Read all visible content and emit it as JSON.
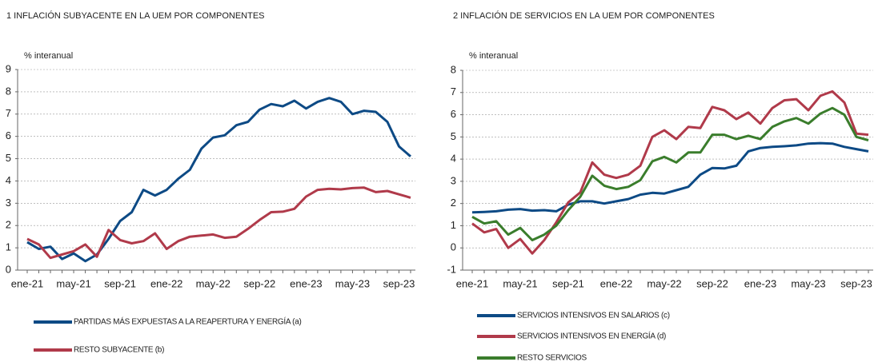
{
  "chart_data": [
    {
      "type": "line",
      "title": "1 INFLACIÓN SUBYACENTE EN LA UEM POR COMPONENTES",
      "y_label": "% interanual",
      "categories": [
        "ene-21",
        null,
        null,
        null,
        "may-21",
        null,
        null,
        null,
        "sep-21",
        null,
        null,
        null,
        "ene-22",
        null,
        null,
        null,
        "may-22",
        null,
        null,
        null,
        "sep-22",
        null,
        null,
        null,
        "ene-23",
        null,
        null,
        null,
        "may-23",
        null,
        null,
        null,
        "sep-23",
        null
      ],
      "series": [
        {
          "name": "PARTIDAS MÁS EXPUESTAS A LA REAPERTURA Y ENERGÍA (a)",
          "color": "#0d4a85",
          "values": [
            1.25,
            0.95,
            1.05,
            0.5,
            0.75,
            0.4,
            0.7,
            1.4,
            2.2,
            2.6,
            3.6,
            3.35,
            3.6,
            4.1,
            4.5,
            5.45,
            5.95,
            6.05,
            6.5,
            6.65,
            7.2,
            7.45,
            7.35,
            7.6,
            7.25,
            7.55,
            7.72,
            7.55,
            7.0,
            7.15,
            7.1,
            6.65,
            5.55,
            5.1
          ]
        },
        {
          "name": "RESTO SUBYACENTE (b)",
          "color": "#b03a4a",
          "values": [
            1.4,
            1.15,
            0.55,
            0.7,
            0.85,
            1.15,
            0.6,
            1.8,
            1.35,
            1.2,
            1.3,
            1.65,
            0.95,
            1.3,
            1.5,
            1.55,
            1.6,
            1.45,
            1.5,
            1.85,
            2.25,
            2.6,
            2.62,
            2.75,
            3.3,
            3.6,
            3.65,
            3.62,
            3.68,
            3.7,
            3.5,
            3.55,
            3.4,
            3.25
          ]
        }
      ],
      "ylim": [
        0,
        9
      ],
      "yticks": [
        0,
        1,
        2,
        3,
        4,
        5,
        6,
        7,
        8,
        9
      ],
      "grid": true
    },
    {
      "type": "line",
      "title": "2 INFLACIÓN DE SERVICIOS EN LA UEM POR COMPONENTES",
      "y_label": "% interanual",
      "categories": [
        "ene-21",
        null,
        null,
        null,
        "may-21",
        null,
        null,
        null,
        "sep-21",
        null,
        null,
        null,
        "ene-22",
        null,
        null,
        null,
        "may-22",
        null,
        null,
        null,
        "sep-22",
        null,
        null,
        null,
        "ene-23",
        null,
        null,
        null,
        "may-23",
        null,
        null,
        null,
        "sep-23",
        null
      ],
      "series": [
        {
          "name": "SERVICIOS INTENSIVOS EN SALARIOS (c)",
          "color": "#0d4a85",
          "values": [
            1.6,
            1.62,
            1.65,
            1.72,
            1.75,
            1.68,
            1.7,
            1.65,
            1.95,
            2.1,
            2.1,
            2.0,
            2.1,
            2.2,
            2.4,
            2.48,
            2.45,
            2.6,
            2.75,
            3.3,
            3.6,
            3.58,
            3.7,
            4.35,
            4.5,
            4.55,
            4.58,
            4.62,
            4.7,
            4.72,
            4.7,
            4.55,
            4.45,
            4.35
          ]
        },
        {
          "name": "SERVICIOS INTENSIVOS EN ENERGÍA (d)",
          "color": "#b03a4a",
          "values": [
            1.1,
            0.7,
            0.85,
            0.0,
            0.4,
            -0.25,
            0.35,
            1.15,
            2.05,
            2.5,
            3.85,
            3.3,
            3.15,
            3.3,
            3.7,
            5.0,
            5.3,
            4.9,
            5.45,
            5.4,
            6.35,
            6.2,
            5.8,
            6.1,
            5.6,
            6.3,
            6.65,
            6.7,
            6.2,
            6.85,
            7.05,
            6.55,
            5.15,
            5.1
          ]
        },
        {
          "name": "RESTO SERVICIOS",
          "color": "#3a7d2c",
          "values": [
            1.4,
            1.1,
            1.2,
            0.6,
            0.9,
            0.35,
            0.6,
            1.0,
            1.7,
            2.3,
            3.25,
            2.8,
            2.65,
            2.75,
            3.05,
            3.9,
            4.1,
            3.85,
            4.3,
            4.3,
            5.1,
            5.1,
            4.9,
            5.05,
            4.9,
            5.45,
            5.7,
            5.85,
            5.6,
            6.05,
            6.3,
            6.0,
            5.0,
            4.85
          ]
        }
      ],
      "ylim": [
        -1,
        8
      ],
      "yticks": [
        -1,
        0,
        1,
        2,
        3,
        4,
        5,
        6,
        7,
        8
      ],
      "grid": true
    }
  ]
}
